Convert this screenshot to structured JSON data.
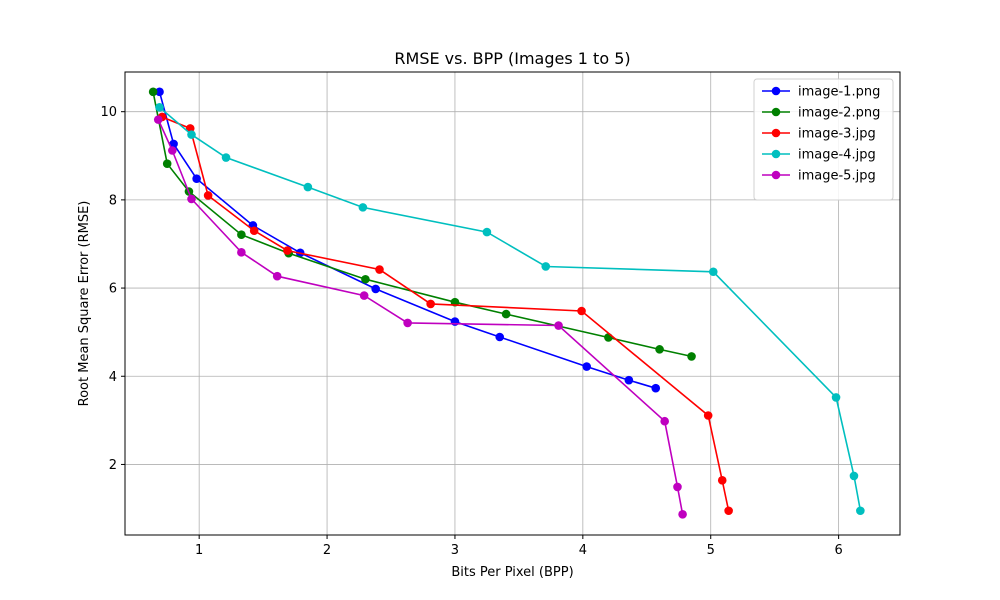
{
  "chart_data": {
    "type": "line",
    "title": "RMSE vs. BPP (Images 1 to 5)",
    "xlabel": "Bits Per Pixel (BPP)",
    "ylabel": "Root Mean Square Error (RMSE)",
    "xlim": [
      0.42,
      6.48
    ],
    "ylim": [
      0.4,
      10.9
    ],
    "xticks": [
      1,
      2,
      3,
      4,
      5,
      6
    ],
    "yticks": [
      2,
      4,
      6,
      8,
      10
    ],
    "grid": true,
    "legend_position": "top-right",
    "series": [
      {
        "name": "image-1.png",
        "color": "#0000ff",
        "x": [
          0.69,
          0.8,
          0.98,
          1.42,
          1.79,
          2.38,
          3.0,
          3.35,
          4.03,
          4.36,
          4.57
        ],
        "y": [
          10.45,
          9.27,
          8.48,
          7.42,
          6.8,
          5.98,
          5.24,
          4.89,
          4.22,
          3.91,
          3.73
        ]
      },
      {
        "name": "image-2.png",
        "color": "#008000",
        "x": [
          0.64,
          0.75,
          0.92,
          1.33,
          1.7,
          2.3,
          3.0,
          3.4,
          4.2,
          4.6,
          4.85
        ],
        "y": [
          10.45,
          8.82,
          8.19,
          7.21,
          6.79,
          6.2,
          5.68,
          5.41,
          4.88,
          4.61,
          4.45
        ]
      },
      {
        "name": "image-3.jpg",
        "color": "#ff0000",
        "x": [
          0.71,
          0.93,
          1.07,
          1.43,
          1.69,
          2.41,
          2.81,
          3.99,
          4.98,
          5.09,
          5.14
        ],
        "y": [
          9.88,
          9.62,
          8.1,
          7.3,
          6.85,
          6.42,
          5.64,
          5.48,
          3.11,
          1.64,
          0.95
        ]
      },
      {
        "name": "image-4.jpg",
        "color": "#00bfbf",
        "x": [
          0.69,
          0.94,
          1.21,
          1.85,
          2.28,
          3.25,
          3.71,
          5.02,
          5.98,
          6.12,
          6.17
        ],
        "y": [
          10.1,
          9.48,
          8.96,
          8.29,
          7.83,
          7.27,
          6.49,
          6.37,
          3.52,
          1.74,
          0.95
        ]
      },
      {
        "name": "image-5.jpg",
        "color": "#bf00bf",
        "x": [
          0.68,
          0.79,
          0.94,
          1.33,
          1.61,
          2.29,
          2.63,
          3.81,
          4.64,
          4.74,
          4.78
        ],
        "y": [
          9.82,
          9.12,
          8.02,
          6.81,
          6.27,
          5.83,
          5.21,
          5.15,
          2.98,
          1.49,
          0.87
        ]
      }
    ]
  }
}
